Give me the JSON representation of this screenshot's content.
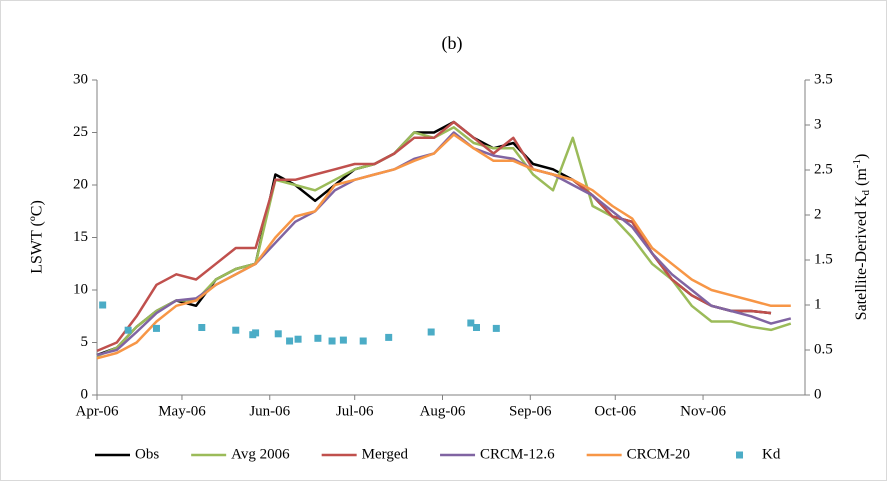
{
  "chart_data": {
    "type": "line",
    "title": "(b)",
    "ylabel": "LSWT (ºC)",
    "y2label": [
      "Satellite-Derived K",
      "d",
      " (m",
      "-1",
      ")"
    ],
    "x": [
      0,
      7,
      14,
      21,
      28,
      35,
      42,
      49,
      56,
      63,
      70,
      77,
      84,
      91,
      98,
      105,
      112,
      119,
      126,
      133,
      140,
      147,
      154,
      161,
      168,
      175,
      182,
      189,
      196,
      203,
      210,
      217,
      224,
      231,
      238,
      245
    ],
    "xlim": [
      0,
      250
    ],
    "xticks": [
      {
        "value": 0,
        "label": "Apr-06"
      },
      {
        "value": 30,
        "label": "May-06"
      },
      {
        "value": 61,
        "label": "Jun-06"
      },
      {
        "value": 91,
        "label": "Jul-06"
      },
      {
        "value": 122,
        "label": "Aug-06"
      },
      {
        "value": 153,
        "label": "Sep-06"
      },
      {
        "value": 183,
        "label": "Oct-06"
      },
      {
        "value": 214,
        "label": "Nov-06"
      }
    ],
    "ylim": [
      0,
      30
    ],
    "yticks": [
      0,
      5,
      10,
      15,
      20,
      25,
      30
    ],
    "y2lim": [
      0,
      3.5
    ],
    "y2ticks": [
      0,
      0.5,
      1,
      1.5,
      2,
      2.5,
      3,
      3.5
    ],
    "series": [
      {
        "name": "Obs",
        "color": "#000000",
        "values": [
          3.8,
          4.5,
          6.5,
          8,
          9,
          8.5,
          11,
          12,
          12.5,
          21,
          20,
          18.5,
          20,
          21.5,
          22,
          23,
          25,
          25,
          26,
          24.5,
          23.5,
          24,
          22,
          21.5,
          20.5,
          19,
          17,
          16.5,
          13.5,
          11,
          9.5,
          8.5,
          8,
          8,
          7.8,
          null
        ]
      },
      {
        "name": "Avg 2006",
        "color": "#9bbb59",
        "values": [
          3.7,
          4.5,
          6.5,
          8,
          9,
          9,
          11,
          12,
          12.5,
          20.5,
          20,
          19.5,
          20.5,
          21.5,
          22,
          23,
          25,
          24.5,
          25.5,
          24,
          23.5,
          23.5,
          21,
          19.5,
          24.5,
          18,
          17,
          15,
          12.5,
          11,
          8.5,
          7,
          7,
          6.5,
          6.2,
          6.8
        ]
      },
      {
        "name": "Merged",
        "color": "#c0504d",
        "values": [
          4.2,
          5,
          7.5,
          10.5,
          11.5,
          11,
          12.5,
          14,
          14,
          20.5,
          20.5,
          21,
          21.5,
          22,
          22,
          23,
          24.5,
          24.5,
          26,
          24.5,
          23,
          24.5,
          21.5,
          21,
          20.5,
          19,
          17,
          16.5,
          13.5,
          11,
          9.5,
          8.5,
          8,
          8,
          7.8,
          null
        ]
      },
      {
        "name": "CRCM-12.6",
        "color": "#8064a2",
        "values": [
          3.8,
          4.3,
          6,
          7.8,
          9,
          9.2,
          10.5,
          11.5,
          12.5,
          14.5,
          16.5,
          17.5,
          19.5,
          20.5,
          21,
          21.5,
          22.5,
          23,
          25,
          23.5,
          22.8,
          22.5,
          21.5,
          21,
          20,
          19,
          17.5,
          16,
          13.5,
          11.5,
          10,
          8.5,
          8,
          7.5,
          6.8,
          7.3
        ]
      },
      {
        "name": "CRCM-20",
        "color": "#f79646",
        "values": [
          3.5,
          4,
          5,
          7,
          8.5,
          9,
          10.5,
          11.5,
          12.5,
          15,
          17,
          17.5,
          20,
          20.5,
          21,
          21.5,
          22.3,
          23,
          24.8,
          23.5,
          22.3,
          22.3,
          21.5,
          21,
          20.5,
          19.5,
          18,
          16.8,
          14,
          12.5,
          11,
          10,
          9.5,
          9,
          8.5,
          8.5
        ]
      },
      {
        "name": "Kd",
        "color": "#4bacc6",
        "type": "scatter",
        "axis": "y2",
        "x": [
          2,
          11,
          21,
          37,
          49,
          55,
          56,
          64,
          68,
          71,
          78,
          83,
          87,
          94,
          103,
          118,
          132,
          134,
          141
        ],
        "values": [
          1.0,
          0.72,
          0.74,
          0.75,
          0.72,
          0.67,
          0.69,
          0.68,
          0.6,
          0.62,
          0.63,
          0.6,
          0.61,
          0.6,
          0.64,
          0.7,
          0.8,
          0.75,
          0.74
        ]
      }
    ]
  }
}
